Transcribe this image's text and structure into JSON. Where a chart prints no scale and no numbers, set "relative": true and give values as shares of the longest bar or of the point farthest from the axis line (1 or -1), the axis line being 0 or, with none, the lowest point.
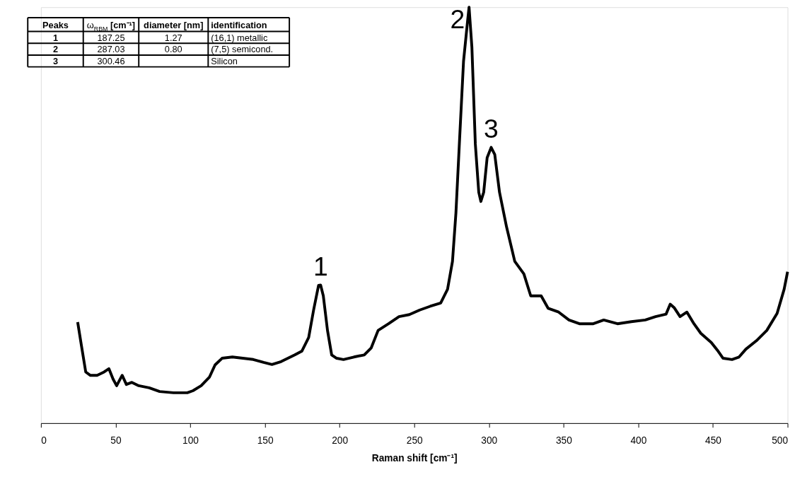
{
  "chart_data": {
    "type": "line",
    "relative": true,
    "xlabel": "Raman shift [cm⁻¹]",
    "xlim": [
      0,
      500
    ],
    "xticks": [
      0,
      50,
      100,
      150,
      200,
      250,
      300,
      350,
      400,
      450,
      500
    ],
    "grid": false,
    "marker": "none",
    "line_style": "solid",
    "x": [
      24.6,
      27,
      30,
      33,
      37.6,
      42.3,
      45.5,
      48.3,
      50.7,
      54.4,
      57.2,
      60.9,
      65.5,
      72.5,
      79.5,
      88.8,
      98,
      101.8,
      107.3,
      112.9,
      116.6,
      121.3,
      128.2,
      135.2,
      142.2,
      149.1,
      154.7,
      160.8,
      165.4,
      170,
      174.7,
      179.3,
      182.6,
      185.9,
      187.3,
      189.1,
      191.9,
      194.7,
      198,
      202.6,
      209.6,
      216.5,
      221.2,
      225.8,
      232.8,
      239.8,
      246.7,
      253.7,
      260.7,
      267.7,
      272.3,
      275.6,
      277.9,
      280.2,
      283,
      285.8,
      286.7,
      288.6,
      290.9,
      293.2,
      294.6,
      296.5,
      298.8,
      301.5,
      303.9,
      307.1,
      311.8,
      317.3,
      323.4,
      328,
      335,
      339.7,
      346.7,
      353.6,
      360.6,
      369.9,
      376.9,
      386.1,
      395.4,
      404.7,
      411.6,
      418.6,
      421.4,
      424.2,
      428,
      432.6,
      437.3,
      441.9,
      448.9,
      453.5,
      456.8,
      462.8,
      467.5,
      472.1,
      479.1,
      486.1,
      493,
      497.7,
      500
    ],
    "series": [
      {
        "color": "#000000",
        "values": [
          0.243,
          0.189,
          0.123,
          0.115,
          0.115,
          0.123,
          0.131,
          0.106,
          0.09,
          0.115,
          0.093,
          0.098,
          0.09,
          0.085,
          0.076,
          0.073,
          0.073,
          0.078,
          0.09,
          0.111,
          0.14,
          0.156,
          0.159,
          0.156,
          0.153,
          0.146,
          0.141,
          0.148,
          0.156,
          0.164,
          0.173,
          0.206,
          0.272,
          0.331,
          0.332,
          0.306,
          0.223,
          0.164,
          0.156,
          0.153,
          0.159,
          0.164,
          0.181,
          0.223,
          0.239,
          0.256,
          0.261,
          0.272,
          0.281,
          0.289,
          0.322,
          0.389,
          0.505,
          0.671,
          0.87,
          0.97,
          1.0,
          0.904,
          0.671,
          0.555,
          0.533,
          0.555,
          0.638,
          0.663,
          0.646,
          0.555,
          0.472,
          0.389,
          0.359,
          0.306,
          0.306,
          0.276,
          0.267,
          0.248,
          0.239,
          0.239,
          0.248,
          0.239,
          0.244,
          0.248,
          0.256,
          0.262,
          0.286,
          0.277,
          0.256,
          0.267,
          0.239,
          0.216,
          0.194,
          0.173,
          0.156,
          0.153,
          0.159,
          0.178,
          0.198,
          0.223,
          0.264,
          0.322,
          0.364
        ]
      }
    ],
    "annotations": [
      "Peaks",
      "ω$_{RBM}$ [cm⁻¹]",
      "diameter [nm]",
      "identification",
      "1",
      "187.25",
      "1.27",
      "(16,1) metallic",
      "2",
      "287.03",
      "0.80",
      "(7,5) semicond.",
      "3",
      "300.46",
      null,
      "Silicon",
      {
        "text": "1",
        "x": 187.3,
        "y": 0.332
      },
      {
        "text": "2",
        "x": 286.7,
        "y": 1.0
      },
      {
        "text": "3",
        "x": 301.5,
        "y": 0.663
      }
    ]
  }
}
